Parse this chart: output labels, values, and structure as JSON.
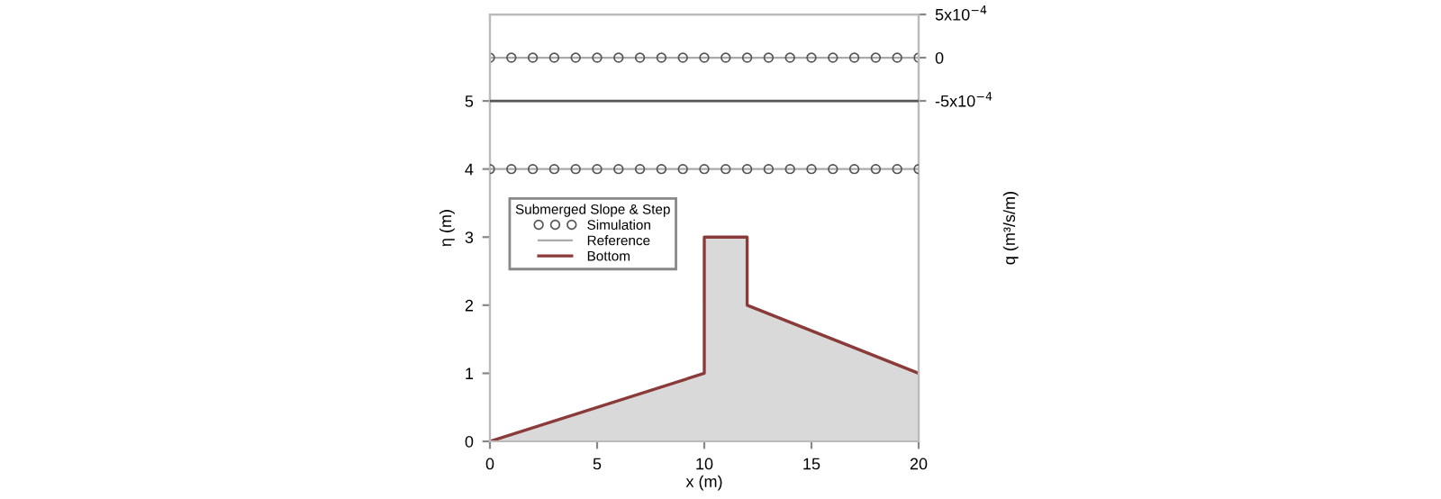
{
  "chart_data": {
    "type": "line",
    "xlabel": "x (m)",
    "ylabel": "η (m)",
    "y2label": "q (m³/s/m)",
    "legend_title": "Submerged Slope & Step",
    "legend": "left",
    "grid": false,
    "xlim": [
      0,
      20
    ],
    "xticks": [
      0,
      5,
      10,
      15,
      20
    ],
    "ylim": [
      0,
      6.27
    ],
    "yticks": [
      0,
      1,
      2,
      3,
      4,
      5
    ],
    "y2lim": [
      -0.00444,
      0.0005
    ],
    "y2ticks": [
      {
        "value": 0.0005,
        "label": "5x10$^{−4}$"
      },
      {
        "value": 0,
        "label": "0"
      },
      {
        "value": -0.0005,
        "label": "-5x10$^{−4}$"
      }
    ],
    "ref_lines": [
      {
        "axis": "y",
        "value": 5,
        "color": "#555555"
      }
    ],
    "series": [
      {
        "name": "Simulation",
        "type": "scatter",
        "marker": "circle",
        "color": "#555555",
        "x": [
          0,
          1,
          2,
          3,
          4,
          5,
          6,
          7,
          8,
          9,
          10,
          11,
          12,
          13,
          14,
          15,
          16,
          17,
          18,
          19,
          20
        ],
        "values": [
          4,
          4,
          4,
          4,
          4,
          4,
          4,
          4,
          4,
          4,
          4,
          4,
          4,
          4,
          4,
          4,
          4,
          4,
          4,
          4,
          4
        ]
      },
      {
        "type": "scatter",
        "marker": "circle",
        "axis": "y2",
        "color": "#555555",
        "x": [
          0,
          1,
          2,
          3,
          4,
          5,
          6,
          7,
          8,
          9,
          10,
          11,
          12,
          13,
          14,
          15,
          16,
          17,
          18,
          19,
          20
        ],
        "values": [
          0,
          0,
          0,
          0,
          0,
          0,
          0,
          0,
          0,
          0,
          0,
          0,
          0,
          0,
          0,
          0,
          0,
          0,
          0,
          0,
          0
        ]
      },
      {
        "name": "Reference",
        "color": "#aaaaaa",
        "x": [
          0,
          20
        ],
        "values": [
          4,
          4
        ]
      },
      {
        "axis": "y2",
        "color": "#aaaaaa",
        "x": [
          0,
          20
        ],
        "values": [
          0,
          0
        ]
      },
      {
        "name": "Bottom",
        "type": "area",
        "color": "#8b3a3a",
        "x": [
          0,
          10,
          10,
          12,
          12,
          20
        ],
        "values": [
          0,
          1,
          3,
          3,
          2,
          1
        ]
      }
    ]
  }
}
